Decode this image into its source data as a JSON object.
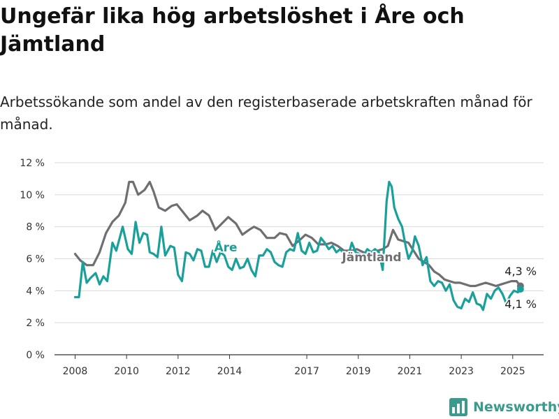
{
  "title": "Ungefär lika hög arbetslöshet i Åre och Jämtland",
  "subtitle": "Arbetssökande som andel av den registerbaserade arbetskraften månad för månad.",
  "brand": {
    "name": "Newsworthy",
    "color": "#3a9a8c"
  },
  "chart_data": {
    "type": "line",
    "y_ticks": [
      "0 %",
      "2 %",
      "4 %",
      "6 %",
      "8 %",
      "10 %",
      "12 %"
    ],
    "x_ticks": [
      "2008",
      "2010",
      "2012",
      "2014",
      "2017",
      "2019",
      "2021",
      "2023",
      "2025"
    ],
    "ylim": [
      0,
      12
    ],
    "xlim": [
      2007.2,
      2026.2
    ],
    "grid": true,
    "legend": "inline labels",
    "series": [
      {
        "name": "Jämtland",
        "color": "#6e6e73",
        "end_label": "4,3 %",
        "points": [
          [
            2008.0,
            6.3
          ],
          [
            2008.2,
            5.9
          ],
          [
            2008.45,
            5.6
          ],
          [
            2008.7,
            5.6
          ],
          [
            2008.95,
            6.4
          ],
          [
            2009.2,
            7.6
          ],
          [
            2009.45,
            8.3
          ],
          [
            2009.7,
            8.7
          ],
          [
            2009.95,
            9.5
          ],
          [
            2010.1,
            10.8
          ],
          [
            2010.25,
            10.8
          ],
          [
            2010.45,
            10.0
          ],
          [
            2010.7,
            10.3
          ],
          [
            2010.9,
            10.8
          ],
          [
            2011.05,
            10.2
          ],
          [
            2011.25,
            9.2
          ],
          [
            2011.5,
            9.0
          ],
          [
            2011.75,
            9.3
          ],
          [
            2011.95,
            9.4
          ],
          [
            2012.15,
            9.0
          ],
          [
            2012.45,
            8.4
          ],
          [
            2012.75,
            8.7
          ],
          [
            2012.95,
            9.0
          ],
          [
            2013.2,
            8.7
          ],
          [
            2013.45,
            7.8
          ],
          [
            2013.7,
            8.2
          ],
          [
            2013.95,
            8.6
          ],
          [
            2014.25,
            8.2
          ],
          [
            2014.5,
            7.5
          ],
          [
            2014.75,
            7.8
          ],
          [
            2014.95,
            8.0
          ],
          [
            2015.2,
            7.8
          ],
          [
            2015.45,
            7.3
          ],
          [
            2015.75,
            7.3
          ],
          [
            2015.95,
            7.6
          ],
          [
            2016.2,
            7.5
          ],
          [
            2016.45,
            6.8
          ],
          [
            2016.75,
            7.2
          ],
          [
            2016.95,
            7.5
          ],
          [
            2017.2,
            7.3
          ],
          [
            2017.45,
            6.9
          ],
          [
            2017.75,
            6.9
          ],
          [
            2017.95,
            7.0
          ],
          [
            2018.2,
            6.8
          ],
          [
            2018.45,
            6.5
          ],
          [
            2018.75,
            6.5
          ],
          [
            2018.95,
            6.6
          ],
          [
            2019.2,
            6.4
          ],
          [
            2019.45,
            6.2
          ],
          [
            2019.75,
            6.5
          ],
          [
            2019.95,
            6.6
          ],
          [
            2020.15,
            6.8
          ],
          [
            2020.35,
            7.8
          ],
          [
            2020.55,
            7.2
          ],
          [
            2020.75,
            7.1
          ],
          [
            2020.95,
            7.0
          ],
          [
            2021.15,
            6.5
          ],
          [
            2021.35,
            6.0
          ],
          [
            2021.55,
            5.8
          ],
          [
            2021.75,
            5.6
          ],
          [
            2021.95,
            5.2
          ],
          [
            2022.15,
            5.0
          ],
          [
            2022.35,
            4.7
          ],
          [
            2022.55,
            4.6
          ],
          [
            2022.75,
            4.5
          ],
          [
            2022.95,
            4.5
          ],
          [
            2023.15,
            4.4
          ],
          [
            2023.35,
            4.3
          ],
          [
            2023.55,
            4.3
          ],
          [
            2023.75,
            4.4
          ],
          [
            2023.95,
            4.5
          ],
          [
            2024.15,
            4.4
          ],
          [
            2024.35,
            4.3
          ],
          [
            2024.55,
            4.4
          ],
          [
            2024.75,
            4.5
          ],
          [
            2024.95,
            4.6
          ],
          [
            2025.15,
            4.6
          ],
          [
            2025.3,
            4.3
          ]
        ]
      },
      {
        "name": "Åre",
        "color": "#1aa09a",
        "end_label": "4,1 %",
        "points": [
          [
            2008.0,
            3.6
          ],
          [
            2008.15,
            3.6
          ],
          [
            2008.3,
            5.8
          ],
          [
            2008.45,
            4.5
          ],
          [
            2008.6,
            4.8
          ],
          [
            2008.8,
            5.1
          ],
          [
            2008.95,
            4.4
          ],
          [
            2009.1,
            4.9
          ],
          [
            2009.25,
            4.6
          ],
          [
            2009.45,
            7.0
          ],
          [
            2009.6,
            6.5
          ],
          [
            2009.85,
            8.0
          ],
          [
            2010.05,
            6.6
          ],
          [
            2010.2,
            6.3
          ],
          [
            2010.35,
            8.3
          ],
          [
            2010.5,
            7.0
          ],
          [
            2010.65,
            7.6
          ],
          [
            2010.8,
            7.5
          ],
          [
            2010.9,
            6.4
          ],
          [
            2011.05,
            6.3
          ],
          [
            2011.2,
            6.1
          ],
          [
            2011.35,
            8.0
          ],
          [
            2011.5,
            6.2
          ],
          [
            2011.7,
            6.8
          ],
          [
            2011.85,
            6.7
          ],
          [
            2012.0,
            5.0
          ],
          [
            2012.15,
            4.6
          ],
          [
            2012.3,
            6.4
          ],
          [
            2012.45,
            6.3
          ],
          [
            2012.6,
            5.9
          ],
          [
            2012.75,
            6.6
          ],
          [
            2012.9,
            6.5
          ],
          [
            2013.05,
            5.5
          ],
          [
            2013.2,
            5.5
          ],
          [
            2013.35,
            6.5
          ],
          [
            2013.5,
            5.8
          ],
          [
            2013.65,
            6.4
          ],
          [
            2013.8,
            6.2
          ],
          [
            2013.95,
            5.5
          ],
          [
            2014.1,
            5.3
          ],
          [
            2014.25,
            6.0
          ],
          [
            2014.4,
            5.4
          ],
          [
            2014.55,
            5.5
          ],
          [
            2014.7,
            6.0
          ],
          [
            2014.85,
            5.3
          ],
          [
            2015.0,
            4.9
          ],
          [
            2015.15,
            6.2
          ],
          [
            2015.3,
            6.2
          ],
          [
            2015.45,
            6.6
          ],
          [
            2015.6,
            6.4
          ],
          [
            2015.75,
            5.8
          ],
          [
            2015.9,
            5.6
          ],
          [
            2016.05,
            5.5
          ],
          [
            2016.2,
            6.4
          ],
          [
            2016.35,
            6.6
          ],
          [
            2016.5,
            6.5
          ],
          [
            2016.65,
            7.6
          ],
          [
            2016.8,
            6.5
          ],
          [
            2016.95,
            6.3
          ],
          [
            2017.1,
            7.0
          ],
          [
            2017.25,
            6.4
          ],
          [
            2017.4,
            6.5
          ],
          [
            2017.55,
            7.3
          ],
          [
            2017.7,
            7.0
          ],
          [
            2017.85,
            6.6
          ],
          [
            2018.0,
            6.8
          ],
          [
            2018.15,
            6.4
          ],
          [
            2018.3,
            6.6
          ],
          [
            2018.45,
            6.3
          ],
          [
            2018.6,
            6.1
          ],
          [
            2018.75,
            7.0
          ],
          [
            2018.9,
            6.4
          ],
          [
            2019.05,
            6.3
          ],
          [
            2019.2,
            6.2
          ],
          [
            2019.35,
            6.6
          ],
          [
            2019.5,
            6.4
          ],
          [
            2019.65,
            6.6
          ],
          [
            2019.8,
            6.4
          ],
          [
            2019.95,
            5.3
          ],
          [
            2020.1,
            9.6
          ],
          [
            2020.2,
            10.8
          ],
          [
            2020.3,
            10.5
          ],
          [
            2020.4,
            9.2
          ],
          [
            2020.55,
            8.5
          ],
          [
            2020.7,
            8.0
          ],
          [
            2020.85,
            6.7
          ],
          [
            2020.95,
            6.0
          ],
          [
            2021.1,
            6.5
          ],
          [
            2021.2,
            7.4
          ],
          [
            2021.35,
            6.8
          ],
          [
            2021.5,
            5.6
          ],
          [
            2021.65,
            6.1
          ],
          [
            2021.8,
            4.6
          ],
          [
            2021.95,
            4.3
          ],
          [
            2022.1,
            4.6
          ],
          [
            2022.25,
            4.5
          ],
          [
            2022.4,
            4.0
          ],
          [
            2022.55,
            4.4
          ],
          [
            2022.7,
            3.4
          ],
          [
            2022.85,
            3.0
          ],
          [
            2023.0,
            2.9
          ],
          [
            2023.15,
            3.5
          ],
          [
            2023.3,
            3.3
          ],
          [
            2023.45,
            3.9
          ],
          [
            2023.6,
            3.2
          ],
          [
            2023.75,
            3.1
          ],
          [
            2023.85,
            2.8
          ],
          [
            2024.0,
            3.8
          ],
          [
            2024.15,
            3.5
          ],
          [
            2024.3,
            4.0
          ],
          [
            2024.45,
            4.2
          ],
          [
            2024.6,
            3.8
          ],
          [
            2024.75,
            3.2
          ],
          [
            2024.9,
            3.7
          ],
          [
            2025.05,
            4.0
          ],
          [
            2025.2,
            3.9
          ],
          [
            2025.3,
            4.1
          ]
        ]
      }
    ],
    "annotations": [
      {
        "text": "Åre",
        "series": "Åre"
      },
      {
        "text": "Jämtland",
        "series": "Jämtland"
      },
      {
        "text": "4,3 %",
        "series": "Jämtland"
      },
      {
        "text": "4,1 %",
        "series": "Åre"
      }
    ]
  }
}
